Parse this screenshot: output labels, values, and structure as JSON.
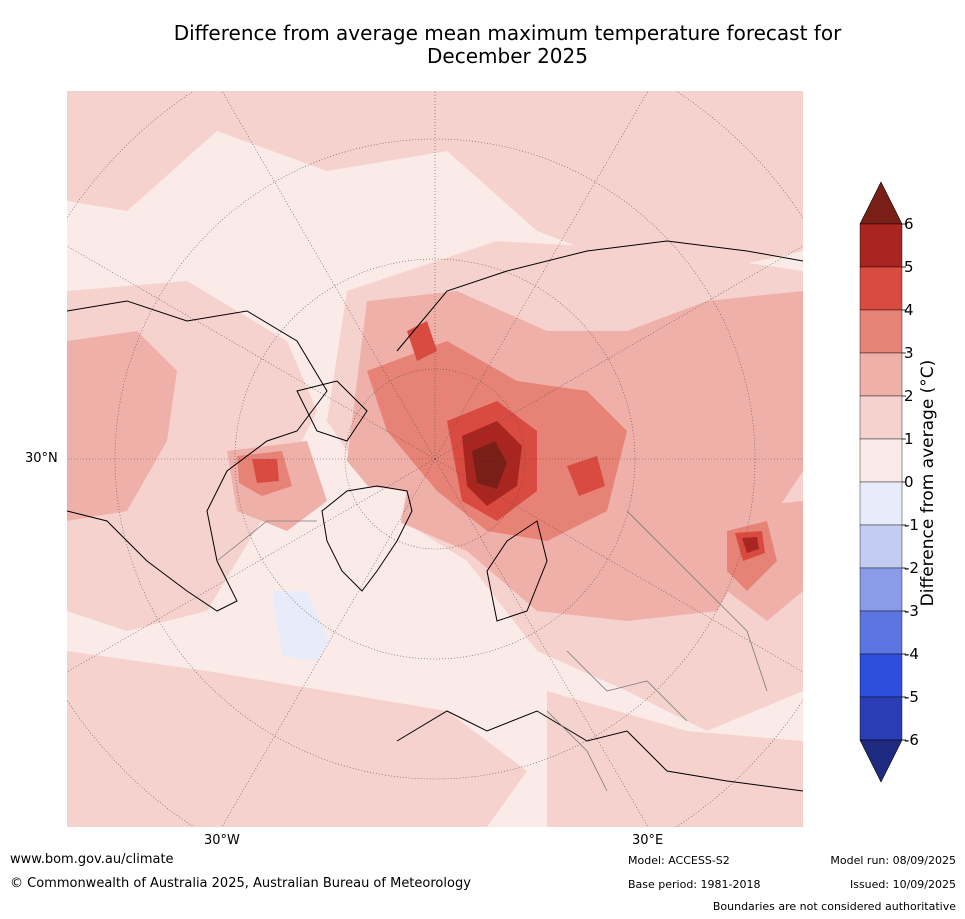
{
  "title_line1": "Difference from average mean maximum temperature forecast for",
  "title_line2": "December 2025",
  "map": {
    "lat_label": "30°N",
    "lon_labels": [
      "30°W",
      "30°E"
    ]
  },
  "colorbar": {
    "label": "Difference from average (°C)",
    "ticks": [
      "6",
      "5",
      "4",
      "3",
      "2",
      "1",
      "0",
      "-1",
      "-2",
      "-3",
      "-4",
      "-5",
      "-6"
    ],
    "colors": [
      "#a8261f",
      "#d94a40",
      "#e78276",
      "#f0b0aa",
      "#f6d2ce",
      "#fbebe8",
      "#e8ecfa",
      "#c3ccf2",
      "#8a9ce8",
      "#5c75e0",
      "#2f4edb",
      "#2a3db5",
      "#1f2b80"
    ],
    "over_color": "#7a1f18",
    "under_color": "#1f2b80"
  },
  "footer": {
    "website": "www.bom.gov.au/climate",
    "copyright": "© Commonwealth of Australia 2025, Australian Bureau of Meteorology",
    "model": "Model: ACCESS-S2",
    "base_period": "Base period: 1981-2018",
    "model_run": "Model run: 08/09/2025",
    "issued": "Issued: 10/09/2025",
    "disclaimer": "Boundaries are not considered authoritative"
  }
}
